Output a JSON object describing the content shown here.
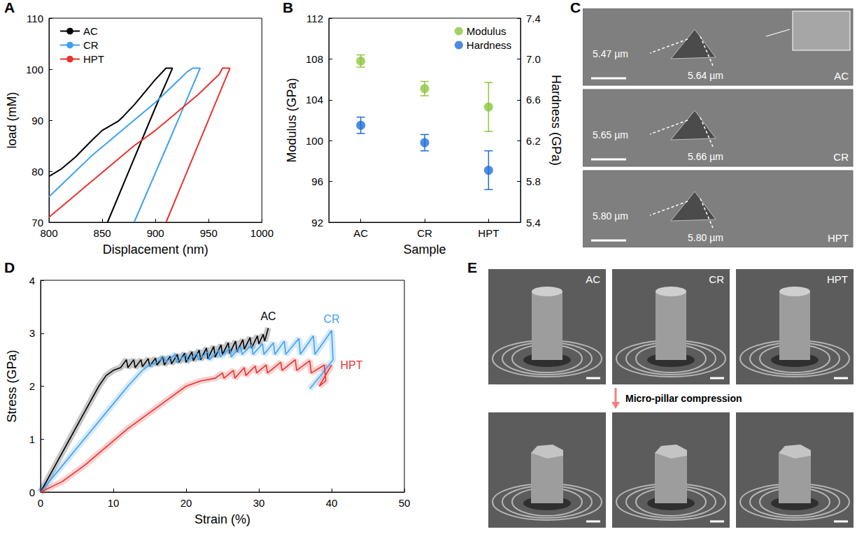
{
  "chart_data": [
    {
      "panel": "A",
      "type": "line",
      "x_label": "Displacement (nm)",
      "y_label": "load (mM)",
      "xlim": [
        800,
        1000
      ],
      "xticks": [
        800,
        850,
        900,
        950,
        1000
      ],
      "ylim": [
        70,
        110
      ],
      "yticks": [
        70,
        80,
        90,
        100,
        110
      ],
      "grid": false,
      "legend": "upper left",
      "series": [
        {
          "name": "AC",
          "color": "#000000",
          "x": [
            800,
            812,
            825,
            840,
            850,
            865,
            870,
            880,
            890,
            900,
            910,
            916,
            900,
            885,
            870,
            855
          ],
          "values": [
            79,
            80.5,
            82.8,
            86,
            88,
            89.8,
            90.8,
            93,
            95.5,
            98,
            100.2,
            100.2,
            92.5,
            85,
            77.5,
            70
          ]
        },
        {
          "name": "CR",
          "color": "#3fa0f0",
          "x": [
            800,
            820,
            840,
            860,
            880,
            900,
            915,
            930,
            935,
            942,
            911,
            880
          ],
          "values": [
            75,
            79,
            83,
            86.5,
            90,
            93.5,
            96.5,
            99.5,
            100.2,
            100.2,
            85,
            70
          ]
        },
        {
          "name": "HPT",
          "color": "#e8332f",
          "x": [
            800,
            820,
            840,
            860,
            880,
            900,
            920,
            940,
            960,
            963,
            970,
            910
          ],
          "values": [
            71,
            74.5,
            78,
            81.5,
            85,
            88,
            91.5,
            95,
            99,
            100.2,
            100.2,
            70
          ]
        }
      ]
    },
    {
      "panel": "B",
      "type": "scatter",
      "x_label": "Sample",
      "y_label": "Modulus (GPa)",
      "y2_label": "Hardness (GPa)",
      "categories": [
        "AC",
        "CR",
        "HPT"
      ],
      "ylim": [
        92,
        112
      ],
      "yticks": [
        92,
        96,
        100,
        104,
        108,
        112
      ],
      "y2lim": [
        5.4,
        7.4
      ],
      "y2ticks": [
        5.4,
        5.8,
        6.2,
        6.6,
        {
          "value": 7,
          "label": "7.0"
        },
        7.4
      ],
      "grid": false,
      "legend": "upper right",
      "series": [
        {
          "name": "Modulus",
          "color": "#8dc63f",
          "values": [
            107.8,
            105.1,
            103.3
          ],
          "errors": [
            0.6,
            0.7,
            2.4
          ]
        },
        {
          "name": "Hardness",
          "color": "#1f6fd9",
          "values": [
            6.35,
            6.18,
            5.91
          ],
          "errors": [
            0.08,
            0.08,
            0.19
          ],
          "axis": "y2"
        }
      ]
    },
    {
      "panel": "D",
      "type": "line",
      "x_label": "Strain (%)",
      "y_label": "Stress (GPa)",
      "xlim": [
        0,
        50
      ],
      "xticks": [
        0,
        10,
        20,
        30,
        40,
        50
      ],
      "ylim": [
        0,
        4
      ],
      "yticks": [
        0,
        1,
        2,
        3,
        4
      ],
      "grid": false,
      "series": [
        {
          "name": "AC",
          "color": "#000000",
          "x": [
            0,
            2,
            4,
            6,
            8,
            9,
            10,
            11,
            11.8,
            12,
            12.8,
            13,
            13.8,
            14,
            14.8,
            15,
            15.8,
            16,
            16.8,
            17,
            17.8,
            18,
            18.8,
            19,
            19.8,
            20,
            20.8,
            21,
            21.8,
            22,
            22.8,
            23,
            23.8,
            24,
            24.8,
            25,
            25.8,
            26,
            26.8,
            27,
            27.8,
            28,
            28.8,
            29,
            29.8,
            30,
            30.6,
            30.8,
            31.3
          ],
          "values": [
            0,
            0.5,
            1.0,
            1.5,
            2.0,
            2.2,
            2.3,
            2.35,
            2.5,
            2.35,
            2.5,
            2.35,
            2.5,
            2.37,
            2.52,
            2.38,
            2.53,
            2.4,
            2.55,
            2.4,
            2.56,
            2.42,
            2.6,
            2.45,
            2.62,
            2.45,
            2.65,
            2.48,
            2.68,
            2.5,
            2.72,
            2.52,
            2.75,
            2.55,
            2.78,
            2.6,
            2.82,
            2.62,
            2.85,
            2.65,
            2.88,
            2.7,
            2.92,
            2.72,
            2.95,
            2.8,
            2.98,
            2.85,
            3.1
          ]
        },
        {
          "name": "CR",
          "color": "#3fa0f0",
          "x": [
            0,
            3,
            6,
            9,
            12,
            14,
            15,
            16,
            17,
            17.2,
            18.5,
            18.7,
            20,
            20.2,
            21.5,
            21.7,
            23,
            23.2,
            24.5,
            24.7,
            26,
            26.2,
            27.5,
            27.7,
            29,
            29.2,
            30.5,
            30.7,
            32,
            32.2,
            33.5,
            33.7,
            35.5,
            35.7,
            37.5,
            37.7,
            40,
            40.2,
            38.5,
            37
          ],
          "values": [
            0,
            0.5,
            1.0,
            1.5,
            2.0,
            2.3,
            2.4,
            2.45,
            2.55,
            2.45,
            2.6,
            2.45,
            2.6,
            2.48,
            2.62,
            2.5,
            2.65,
            2.5,
            2.68,
            2.55,
            2.72,
            2.55,
            2.75,
            2.6,
            2.78,
            2.6,
            2.8,
            2.6,
            2.82,
            2.6,
            2.85,
            2.6,
            2.9,
            2.6,
            2.95,
            2.6,
            3.05,
            2.5,
            2.2,
            1.95
          ]
        },
        {
          "name": "HPT",
          "color": "#e8332f",
          "x": [
            0,
            3,
            6,
            9,
            12,
            15,
            18,
            20,
            22,
            24,
            25,
            25.2,
            26.5,
            26.7,
            28,
            28.2,
            29.5,
            29.7,
            31,
            31.2,
            33,
            33.2,
            35,
            35.2,
            37,
            37.2,
            39,
            39.2,
            38.3,
            40
          ],
          "values": [
            0,
            0.2,
            0.5,
            0.85,
            1.2,
            1.5,
            1.8,
            2.0,
            2.1,
            2.15,
            2.25,
            2.15,
            2.3,
            2.15,
            2.35,
            2.2,
            2.38,
            2.25,
            2.4,
            2.25,
            2.45,
            2.3,
            2.5,
            2.3,
            2.48,
            2.25,
            2.4,
            2.1,
            2.0,
            2.4
          ]
        }
      ]
    }
  ],
  "images": [
    {
      "panel": "C",
      "images": [
        {
          "label": "AC",
          "measurements": [
            "5.47 µm",
            "5.64 µm"
          ]
        },
        {
          "label": "CR",
          "measurements": [
            "5.65 µm",
            "5.66 µm"
          ]
        },
        {
          "label": "HPT",
          "measurements": [
            "5.80 µm",
            "5.80 µm"
          ]
        }
      ]
    },
    {
      "panel": "E",
      "labels": [
        "AC",
        "CR",
        "HPT"
      ],
      "caption": "Micro-pillar compression"
    }
  ]
}
